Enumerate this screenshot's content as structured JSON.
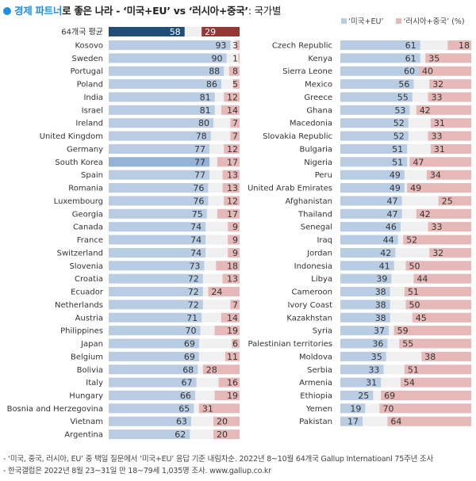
{
  "header": {
    "title_highlight": "경제 파트너",
    "title_rest": "로 좋은 나라 - ‘미국+EU’ vs ‘러시아+중국’",
    "title_sub": ": 국가별"
  },
  "legend": {
    "items": [
      {
        "label": "‘미국+EU’",
        "color": "#b8cce4"
      },
      {
        "label": "‘러시아+중국’ (%)",
        "color": "#e6b9b8"
      }
    ]
  },
  "colors": {
    "us_eu": "#b8cce4",
    "ru_cn": "#e6b9b8",
    "us_eu_highlight": "#95b3d7",
    "avg_us_eu": "#1f4e79",
    "avg_ru_cn": "#953735",
    "track": "#f0f0f0"
  },
  "chart_data": {
    "type": "bar",
    "subtype": "diverging-stacked-horizontal",
    "title": "경제 파트너로 좋은 나라 - ‘미국+EU’ vs ‘러시아+중국’: 국가별",
    "unit": "%",
    "xlim": [
      0,
      100
    ],
    "legend_position": "top-right",
    "series_names": [
      "‘미국+EU’",
      "‘러시아+중국’"
    ],
    "average": {
      "label": "64개국 평균",
      "us_eu": 58,
      "ru_cn": 29
    },
    "highlight": "South Korea",
    "panels": [
      {
        "countries": [
          {
            "name": "Kosovo",
            "us_eu": 93,
            "ru_cn": 3
          },
          {
            "name": "Sweden",
            "us_eu": 90,
            "ru_cn": 1
          },
          {
            "name": "Portugal",
            "us_eu": 88,
            "ru_cn": 8
          },
          {
            "name": "Poland",
            "us_eu": 86,
            "ru_cn": 5
          },
          {
            "name": "India",
            "us_eu": 81,
            "ru_cn": 12
          },
          {
            "name": "Israel",
            "us_eu": 81,
            "ru_cn": 14
          },
          {
            "name": "Ireland",
            "us_eu": 80,
            "ru_cn": 7
          },
          {
            "name": "United Kingdom",
            "us_eu": 78,
            "ru_cn": 7
          },
          {
            "name": "Germany",
            "us_eu": 77,
            "ru_cn": 12
          },
          {
            "name": "South Korea",
            "us_eu": 77,
            "ru_cn": 17
          },
          {
            "name": "Spain",
            "us_eu": 77,
            "ru_cn": 13
          },
          {
            "name": "Romania",
            "us_eu": 76,
            "ru_cn": 13
          },
          {
            "name": "Luxembourg",
            "us_eu": 76,
            "ru_cn": 12
          },
          {
            "name": "Georgia",
            "us_eu": 75,
            "ru_cn": 17
          },
          {
            "name": "Canada",
            "us_eu": 74,
            "ru_cn": 9
          },
          {
            "name": "France",
            "us_eu": 74,
            "ru_cn": 9
          },
          {
            "name": "Switzerland",
            "us_eu": 74,
            "ru_cn": 9
          },
          {
            "name": "Slovenia",
            "us_eu": 73,
            "ru_cn": 18
          },
          {
            "name": "Croatia",
            "us_eu": 72,
            "ru_cn": 13
          },
          {
            "name": "Ecuador",
            "us_eu": 72,
            "ru_cn": 24
          },
          {
            "name": "Netherlands",
            "us_eu": 72,
            "ru_cn": 7
          },
          {
            "name": "Austria",
            "us_eu": 71,
            "ru_cn": 14
          },
          {
            "name": "Philippines",
            "us_eu": 70,
            "ru_cn": 19
          },
          {
            "name": "Japan",
            "us_eu": 69,
            "ru_cn": 6
          },
          {
            "name": "Belgium",
            "us_eu": 69,
            "ru_cn": 11
          },
          {
            "name": "Bolivia",
            "us_eu": 68,
            "ru_cn": 28
          },
          {
            "name": "Italy",
            "us_eu": 67,
            "ru_cn": 16
          },
          {
            "name": "Hungary",
            "us_eu": 66,
            "ru_cn": 19
          },
          {
            "name": "Bosnia and Herzegovina",
            "us_eu": 65,
            "ru_cn": 31
          },
          {
            "name": "Vietnam",
            "us_eu": 63,
            "ru_cn": 20
          },
          {
            "name": "Argentina",
            "us_eu": 62,
            "ru_cn": 20
          }
        ]
      },
      {
        "countries": [
          {
            "name": "Czech Republic",
            "us_eu": 61,
            "ru_cn": 18
          },
          {
            "name": "Kenya",
            "us_eu": 61,
            "ru_cn": 35
          },
          {
            "name": "Sierra Leone",
            "us_eu": 60,
            "ru_cn": 40
          },
          {
            "name": "Mexico",
            "us_eu": 56,
            "ru_cn": 32
          },
          {
            "name": "Greece",
            "us_eu": 55,
            "ru_cn": 33
          },
          {
            "name": "Ghana",
            "us_eu": 53,
            "ru_cn": 42
          },
          {
            "name": "Macedonia",
            "us_eu": 52,
            "ru_cn": 31
          },
          {
            "name": "Slovakia Republic",
            "us_eu": 52,
            "ru_cn": 33
          },
          {
            "name": "Bulgaria",
            "us_eu": 51,
            "ru_cn": 31
          },
          {
            "name": "Nigeria",
            "us_eu": 51,
            "ru_cn": 47
          },
          {
            "name": "Peru",
            "us_eu": 49,
            "ru_cn": 34
          },
          {
            "name": "United Arab Emirates",
            "us_eu": 49,
            "ru_cn": 49
          },
          {
            "name": "Afghanistan",
            "us_eu": 47,
            "ru_cn": 25
          },
          {
            "name": "Thailand",
            "us_eu": 47,
            "ru_cn": 42
          },
          {
            "name": "Senegal",
            "us_eu": 46,
            "ru_cn": 33
          },
          {
            "name": "Iraq",
            "us_eu": 44,
            "ru_cn": 52
          },
          {
            "name": "Jordan",
            "us_eu": 42,
            "ru_cn": 32
          },
          {
            "name": "Indonesia",
            "us_eu": 41,
            "ru_cn": 50
          },
          {
            "name": "Libya",
            "us_eu": 39,
            "ru_cn": 44
          },
          {
            "name": "Cameroon",
            "us_eu": 38,
            "ru_cn": 51
          },
          {
            "name": "Ivory Coast",
            "us_eu": 38,
            "ru_cn": 50
          },
          {
            "name": "Kazakhstan",
            "us_eu": 38,
            "ru_cn": 45
          },
          {
            "name": "Syria",
            "us_eu": 37,
            "ru_cn": 59
          },
          {
            "name": "Palestinian territories",
            "us_eu": 36,
            "ru_cn": 55
          },
          {
            "name": "Moldova",
            "us_eu": 35,
            "ru_cn": 38
          },
          {
            "name": "Serbia",
            "us_eu": 33,
            "ru_cn": 51
          },
          {
            "name": "Armenia",
            "us_eu": 31,
            "ru_cn": 54
          },
          {
            "name": "Ethiopia",
            "us_eu": 25,
            "ru_cn": 69
          },
          {
            "name": "Yemen",
            "us_eu": 19,
            "ru_cn": 70
          },
          {
            "name": "Pakistan",
            "us_eu": 17,
            "ru_cn": 64
          }
        ]
      }
    ]
  },
  "footer": {
    "notes": [
      "- ‘미국, 중국, 러시아, EU’ 중 택일 질문에서 ‘미국+EU’ 응답 기준 내림차순. 2022년 8~10월 64개국 Gallup Internatioanl 75주년 조사",
      "- 한국갤럽은 2022년 8월 23~31일 만 18~79세 1,035명 조사. www.gallup.co.kr"
    ]
  }
}
